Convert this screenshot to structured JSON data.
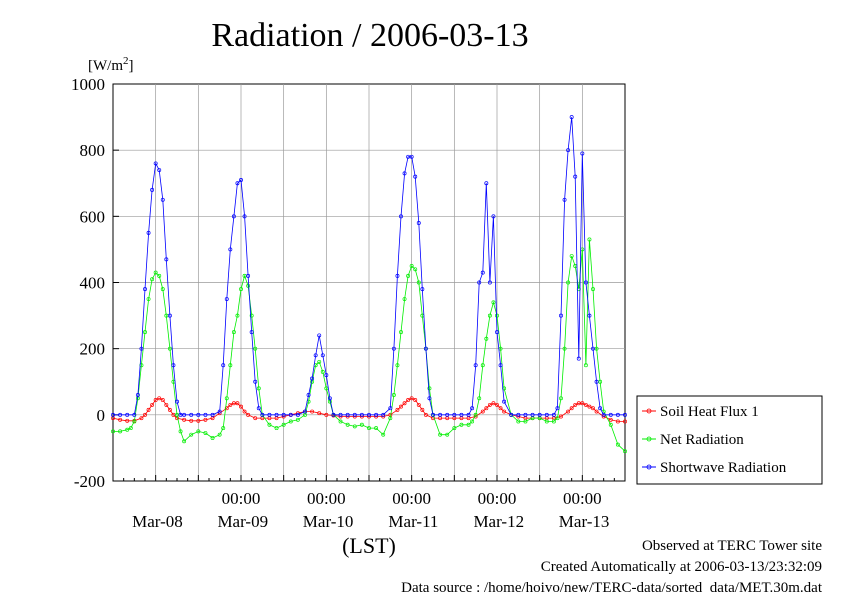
{
  "chart_data": {
    "type": "line",
    "title": "Radiation / 2006-03-13",
    "ylabel": "[W/m",
    "ylabel_sup": "2",
    "ylabel_close": "]",
    "xlabel": "(LST)",
    "ylim": [
      -200,
      1000
    ],
    "yticks": [
      "1000",
      "800",
      "600",
      "400",
      "200",
      "0",
      "-200"
    ],
    "ytick_values": [
      1000,
      800,
      600,
      400,
      200,
      0,
      -200
    ],
    "xlim_hours": [
      0,
      144
    ],
    "x_time_ticks": [
      "00:00",
      "00:00",
      "00:00",
      "00:00",
      "00:00"
    ],
    "x_time_tick_hours": [
      36,
      60,
      84,
      108,
      132
    ],
    "x_date_labels": [
      "Mar-08",
      "Mar-09",
      "Mar-10",
      "Mar-11",
      "Mar-12",
      "Mar-13"
    ],
    "x_date_label_hours": [
      12.5,
      36.5,
      60.5,
      84.5,
      108.5,
      132.5
    ],
    "grid": true,
    "legend_position": "right",
    "series": [
      {
        "name": "Soil Heat Flux 1",
        "color": "#ff0000",
        "x": [
          0,
          2,
          4,
          6,
          8,
          9,
          10,
          11,
          12,
          13,
          14,
          15,
          16,
          17,
          18,
          20,
          22,
          24,
          26,
          28,
          30,
          32,
          33,
          34,
          35,
          36,
          37,
          38,
          40,
          42,
          44,
          46,
          48,
          50,
          52,
          54,
          56,
          58,
          60,
          62,
          64,
          66,
          68,
          70,
          72,
          74,
          76,
          78,
          80,
          81,
          82,
          83,
          84,
          85,
          86,
          87,
          88,
          90,
          92,
          94,
          96,
          98,
          100,
          102,
          104,
          105,
          106,
          107,
          108,
          109,
          110,
          112,
          114,
          116,
          118,
          120,
          122,
          124,
          126,
          128,
          129,
          130,
          131,
          132,
          133,
          134,
          135,
          136,
          138,
          140,
          142,
          144
        ],
        "y": [
          -10,
          -15,
          -18,
          -18,
          -10,
          0,
          15,
          30,
          45,
          50,
          45,
          30,
          15,
          0,
          -10,
          -15,
          -18,
          -18,
          -15,
          -10,
          5,
          20,
          30,
          35,
          35,
          25,
          10,
          0,
          -10,
          -10,
          -10,
          -10,
          -5,
          0,
          5,
          10,
          10,
          5,
          0,
          -2,
          -5,
          -5,
          -5,
          -5,
          -5,
          -5,
          -5,
          0,
          15,
          25,
          35,
          45,
          50,
          45,
          30,
          15,
          0,
          -10,
          -10,
          -10,
          -10,
          -10,
          -10,
          -5,
          10,
          20,
          30,
          35,
          30,
          20,
          10,
          0,
          -5,
          -10,
          -10,
          -10,
          -10,
          -10,
          -5,
          10,
          20,
          30,
          35,
          35,
          30,
          25,
          20,
          10,
          -5,
          -15,
          -20,
          -20
        ]
      },
      {
        "name": "Net Radiation",
        "color": "#00ee00",
        "x": [
          0,
          2,
          4,
          5,
          6,
          7,
          8,
          9,
          10,
          11,
          12,
          13,
          14,
          15,
          16,
          17,
          18,
          19,
          20,
          22,
          24,
          26,
          28,
          30,
          31,
          32,
          33,
          34,
          35,
          36,
          37,
          38,
          39,
          40,
          41,
          42,
          44,
          46,
          48,
          50,
          52,
          54,
          55,
          56,
          57,
          58,
          59,
          60,
          61,
          62,
          64,
          66,
          68,
          70,
          72,
          74,
          76,
          78,
          79,
          80,
          81,
          82,
          83,
          84,
          85,
          86,
          87,
          88,
          89,
          90,
          92,
          94,
          96,
          98,
          100,
          101,
          102,
          103,
          104,
          105,
          106,
          107,
          108,
          109,
          110,
          112,
          114,
          116,
          118,
          120,
          122,
          124,
          125,
          126,
          127,
          128,
          129,
          130,
          131,
          132,
          133,
          134,
          135,
          136,
          137,
          138,
          140,
          142,
          144
        ],
        "y": [
          -50,
          -50,
          -45,
          -40,
          -20,
          50,
          150,
          250,
          350,
          410,
          430,
          420,
          380,
          300,
          200,
          100,
          0,
          -50,
          -80,
          -60,
          -50,
          -55,
          -70,
          -60,
          -40,
          50,
          150,
          250,
          300,
          380,
          420,
          390,
          300,
          200,
          80,
          0,
          -30,
          -40,
          -30,
          -20,
          -15,
          0,
          40,
          100,
          150,
          160,
          130,
          80,
          40,
          0,
          -20,
          -30,
          -35,
          -30,
          -40,
          -40,
          -60,
          -10,
          60,
          150,
          250,
          350,
          420,
          450,
          440,
          400,
          300,
          200,
          80,
          0,
          -60,
          -60,
          -40,
          -30,
          -30,
          -20,
          0,
          50,
          150,
          230,
          300,
          340,
          300,
          200,
          80,
          0,
          -20,
          -20,
          -10,
          -10,
          -20,
          -20,
          -10,
          50,
          200,
          400,
          480,
          450,
          380,
          500,
          150,
          530,
          380,
          200,
          100,
          10,
          -30,
          -90,
          -110
        ]
      },
      {
        "name": "Shortwave Radiation",
        "color": "#0000ff",
        "x": [
          0,
          2,
          4,
          6,
          7,
          8,
          9,
          10,
          11,
          12,
          13,
          14,
          15,
          16,
          17,
          18,
          19,
          20,
          22,
          24,
          26,
          28,
          30,
          31,
          32,
          33,
          34,
          35,
          36,
          37,
          38,
          39,
          40,
          41,
          42,
          44,
          46,
          48,
          50,
          52,
          54,
          55,
          56,
          57,
          58,
          59,
          60,
          61,
          62,
          64,
          66,
          68,
          70,
          72,
          74,
          76,
          78,
          79,
          80,
          81,
          82,
          83,
          84,
          85,
          86,
          87,
          88,
          89,
          90,
          92,
          94,
          96,
          98,
          100,
          101,
          102,
          103,
          104,
          105,
          106,
          107,
          108,
          109,
          110,
          112,
          114,
          116,
          118,
          120,
          122,
          124,
          125,
          126,
          127,
          128,
          129,
          130,
          131,
          132,
          133,
          134,
          135,
          136,
          137,
          138,
          140,
          142,
          144
        ],
        "y": [
          0,
          0,
          0,
          0,
          60,
          200,
          380,
          550,
          680,
          760,
          740,
          650,
          470,
          300,
          150,
          40,
          0,
          0,
          0,
          0,
          0,
          0,
          10,
          150,
          350,
          500,
          600,
          700,
          710,
          600,
          420,
          250,
          100,
          20,
          0,
          0,
          0,
          0,
          0,
          0,
          10,
          60,
          110,
          180,
          240,
          180,
          120,
          50,
          0,
          0,
          0,
          0,
          0,
          0,
          0,
          0,
          20,
          200,
          420,
          600,
          730,
          780,
          780,
          720,
          580,
          380,
          200,
          50,
          0,
          0,
          0,
          0,
          0,
          0,
          20,
          150,
          400,
          430,
          700,
          400,
          600,
          250,
          150,
          40,
          0,
          0,
          0,
          0,
          0,
          0,
          0,
          20,
          300,
          650,
          800,
          900,
          720,
          170,
          790,
          400,
          300,
          200,
          100,
          20,
          0,
          0,
          0,
          0
        ]
      }
    ]
  },
  "footer": {
    "line1": "Observed at TERC Tower site",
    "line2": "Created Automatically at 2006-03-13/23:32:09",
    "line3": "Data source : /home/hoivo/new/TERC-data/sorted  data/MET.30m.dat"
  },
  "colors": {
    "axis": "#000000",
    "grid": "#9a9a9a",
    "background": "#ffffff"
  }
}
